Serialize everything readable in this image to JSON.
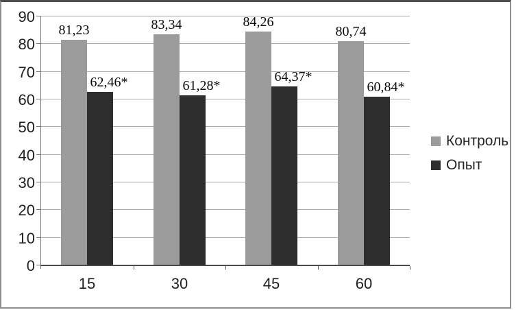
{
  "chart": {
    "background": "#ffffff",
    "frame_border_color": "#8e8e8e",
    "frame_top_border_color": "#4d4d4d",
    "gridline_color": "#a9a9a9",
    "axis_color": "#757575"
  },
  "chart_data": {
    "type": "bar",
    "title": "",
    "xlabel": "",
    "ylabel": "",
    "categories": [
      "15",
      "30",
      "45",
      "60"
    ],
    "series": [
      {
        "key": "kontrol",
        "name": "Контроль",
        "color": "#9b9b9b",
        "values": [
          81.23,
          83.34,
          84.26,
          80.74
        ],
        "data_labels": [
          "81,23",
          "83,34",
          "84,26",
          "80,74"
        ],
        "label_dx": 0
      },
      {
        "key": "opyt",
        "name": "Опыт",
        "color": "#2e2e2e",
        "values": [
          62.46,
          61.28,
          64.37,
          60.84
        ],
        "data_labels": [
          "62,46*",
          "61,28*",
          "64,37*",
          "60,84*"
        ],
        "label_dx": 13
      }
    ],
    "ylim": [
      0,
      90
    ],
    "ytick_step": 10,
    "ytick_labels": [
      "0",
      "10",
      "20",
      "30",
      "40",
      "50",
      "60",
      "70",
      "80",
      "90"
    ],
    "grid": "horizontal",
    "legend_position": "right",
    "legend_entries": [
      "Контроль",
      "Опыт"
    ]
  }
}
